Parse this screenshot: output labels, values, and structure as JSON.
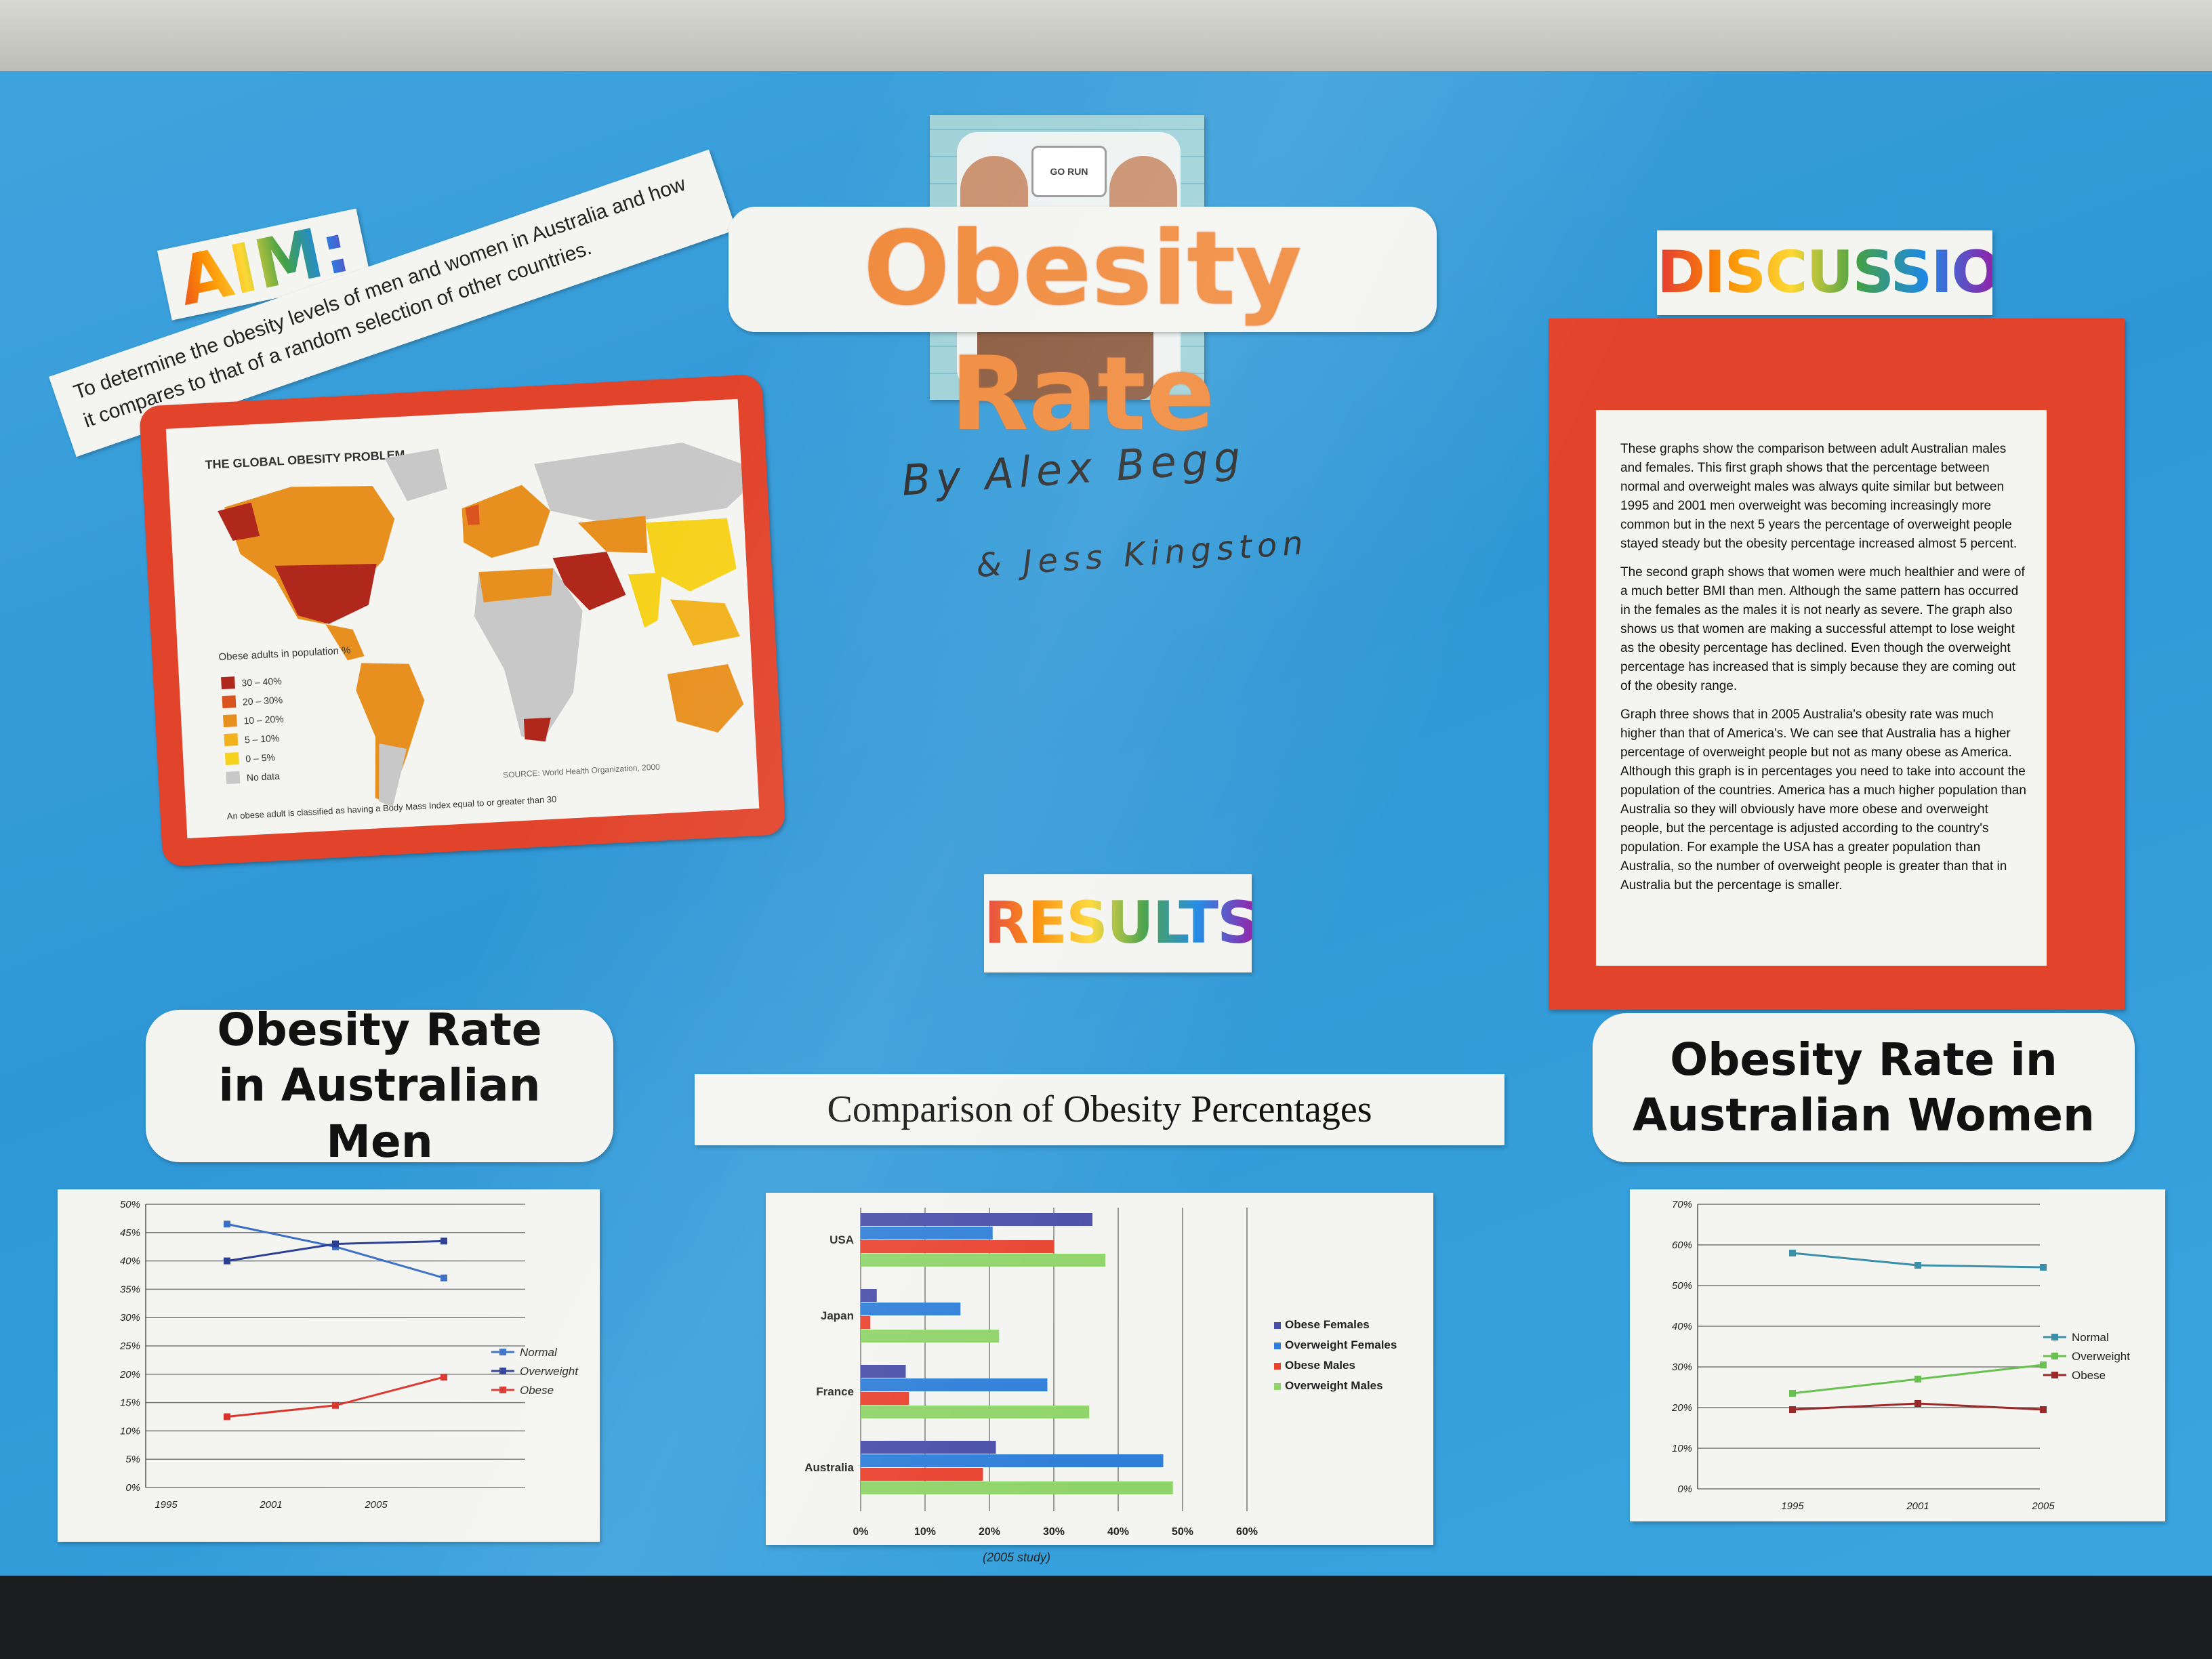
{
  "poster": {
    "title": "Obesity Rate",
    "scale_reading": "GO RUN",
    "authors": {
      "line1": "By Alex Begg",
      "line2": "& Jess Kingston"
    },
    "aim": {
      "heading": "AIM:",
      "text": "To determine the obesity levels of men and women in Australia and how it compares to that of a random selection of other countries."
    },
    "discussion": {
      "heading": "DISCUSSION:",
      "paragraphs": [
        "These graphs show the comparison between adult Australian males and females. This first graph shows that the percentage between normal and overweight males was always quite similar but between 1995 and 2001 men overweight was becoming increasingly more common but in the next 5 years the percentage of overweight people stayed steady but the obesity percentage increased almost 5 percent.",
        "The second graph shows that women were much healthier and were of a much better BMI than men. Although the same pattern has occurred in the females as the males it is not nearly as severe. The graph also shows us that women are making a successful attempt to lose weight as the obesity percentage has declined. Even though the overweight percentage has increased that is simply because they are coming out of the obesity range.",
        "Graph three shows that in 2005 Australia's obesity rate was much higher than that of America's. We can see that Australia has a higher percentage of overweight people but not as many obese as America. Although this graph is in percentages you need to take into account the population of the countries. America has a much higher population than Australia so they will obviously have more obese and overweight people, but the percentage is adjusted according to the country's population. For example the USA has a greater population than Australia, so the number of overweight people is greater than that in Australia but the percentage is smaller."
      ]
    },
    "results_heading": "RESULTS:",
    "map": {
      "title": "THE GLOBAL OBESITY PROBLEM",
      "legend_title": "Obese adults in population %",
      "legend": [
        {
          "label": "30 – 40%",
          "color": "#b0281c"
        },
        {
          "label": "20 – 30%",
          "color": "#d9541e"
        },
        {
          "label": "10 – 20%",
          "color": "#e8901f"
        },
        {
          "label": "5 – 10%",
          "color": "#f2b21e"
        },
        {
          "label": "0 – 5%",
          "color": "#f7d21c"
        },
        {
          "label": "No data",
          "color": "#c8c8c8"
        }
      ],
      "footnote": "An obese adult is classified as having a Body Mass Index equal to or greater than 30",
      "source": "SOURCE: World Health Organization, 2000"
    },
    "men_heading": "Obesity Rate in Australian Men",
    "women_heading": "Obesity Rate in Australian Women",
    "comparison_heading": "Comparison of Obesity Percentages",
    "study_note": "(2005 study)"
  },
  "chart_data": [
    {
      "type": "line",
      "x": [
        "1995",
        "2001",
        "2005"
      ],
      "ylim": [
        0,
        50
      ],
      "yticks": [
        "0%",
        "5%",
        "10%",
        "15%",
        "20%",
        "25%",
        "30%",
        "35%",
        "40%",
        "45%",
        "50%"
      ],
      "legend_position": "right",
      "series": [
        {
          "name": "Normal",
          "values": [
            46.5,
            42.5,
            37
          ],
          "color": "#3a6fc4"
        },
        {
          "name": "Overweight",
          "values": [
            40,
            43,
            43.5
          ],
          "color": "#2b3f94"
        },
        {
          "name": "Obese",
          "values": [
            12.5,
            14.5,
            19.5
          ],
          "color": "#d9342b"
        }
      ]
    },
    {
      "type": "bar",
      "orientation": "horizontal",
      "categories": [
        "USA",
        "Japan",
        "France",
        "Australia"
      ],
      "xlim": [
        0,
        60
      ],
      "xticks": [
        "0%",
        "10%",
        "20%",
        "30%",
        "40%",
        "50%",
        "60%"
      ],
      "legend_position": "right",
      "series": [
        {
          "name": "Obese Females",
          "values": [
            36,
            2.5,
            7,
            21
          ],
          "color": "#4a4fa8"
        },
        {
          "name": "Overweight Females",
          "values": [
            20.5,
            15.5,
            29,
            47
          ],
          "color": "#2f7fd8"
        },
        {
          "name": "Obese Males",
          "values": [
            30,
            1.5,
            7.5,
            19
          ],
          "color": "#e8432f"
        },
        {
          "name": "Overweight Males",
          "values": [
            38,
            21.5,
            35.5,
            48.5
          ],
          "color": "#8fd46a"
        }
      ]
    },
    {
      "type": "line",
      "x": [
        "1995",
        "2001",
        "2005"
      ],
      "ylim": [
        0,
        70
      ],
      "yticks": [
        "0%",
        "10%",
        "20%",
        "30%",
        "40%",
        "50%",
        "60%",
        "70%"
      ],
      "legend_position": "right",
      "series": [
        {
          "name": "Normal",
          "values": [
            58,
            55,
            54.5
          ],
          "color": "#3b8fa8"
        },
        {
          "name": "Overweight",
          "values": [
            23.5,
            27,
            30.5
          ],
          "color": "#68c050"
        },
        {
          "name": "Obese",
          "values": [
            19.5,
            21,
            19.5
          ],
          "color": "#9a2a2a"
        }
      ]
    }
  ]
}
